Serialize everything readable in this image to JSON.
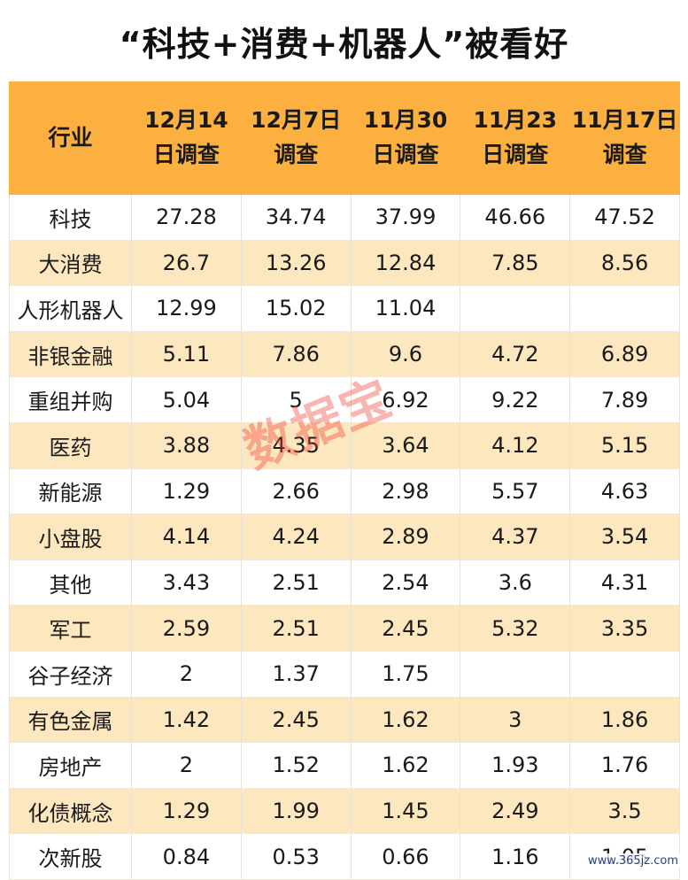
{
  "chart_data": {
    "type": "table",
    "title": "“科技+消费+机器人”被看好",
    "columns": [
      "行业",
      "12月14日调查",
      "12月7日调查",
      "11月30日调查",
      "11月23日调查",
      "11月17日调查"
    ],
    "header_lines": [
      [
        "行业"
      ],
      [
        "12月14",
        "日调查"
      ],
      [
        "12月7日",
        "调查"
      ],
      [
        "11月30",
        "日调查"
      ],
      [
        "11月23",
        "日调查"
      ],
      [
        "11月17日",
        "调查"
      ]
    ],
    "rows": [
      [
        "科技",
        "27.28",
        "34.74",
        "37.99",
        "46.66",
        "47.52"
      ],
      [
        "大消费",
        "26.7",
        "13.26",
        "12.84",
        "7.85",
        "8.56"
      ],
      [
        "人形机器人",
        "12.99",
        "15.02",
        "11.04",
        "",
        ""
      ],
      [
        "非银金融",
        "5.11",
        "7.86",
        "9.6",
        "4.72",
        "6.89"
      ],
      [
        "重组并购",
        "5.04",
        "5",
        "6.92",
        "9.22",
        "7.89"
      ],
      [
        "医药",
        "3.88",
        "4.35",
        "3.64",
        "4.12",
        "5.15"
      ],
      [
        "新能源",
        "1.29",
        "2.66",
        "2.98",
        "5.57",
        "4.63"
      ],
      [
        "小盘股",
        "4.14",
        "4.24",
        "2.89",
        "4.37",
        "3.54"
      ],
      [
        "其他",
        "3.43",
        "2.51",
        "2.54",
        "3.6",
        "4.31"
      ],
      [
        "军工",
        "2.59",
        "2.51",
        "2.45",
        "5.32",
        "3.35"
      ],
      [
        "谷子经济",
        "2",
        "1.37",
        "1.75",
        "",
        ""
      ],
      [
        "有色金属",
        "1.42",
        "2.45",
        "1.62",
        "3",
        "1.86"
      ],
      [
        "房地产",
        "2",
        "1.52",
        "1.62",
        "1.93",
        "1.76"
      ],
      [
        "化债概念",
        "1.29",
        "1.99",
        "1.45",
        "2.49",
        "3.5"
      ],
      [
        "次新股",
        "0.84",
        "0.53",
        "0.66",
        "1.16",
        "1.05"
      ]
    ],
    "colors": {
      "header_bg": "#fbb040",
      "stripe_bg": "#fde7bf",
      "row_bg": "#ffffff",
      "watermark": "#f03c32"
    }
  },
  "watermark": "数据宝",
  "source_mark": "www.365jz.com"
}
